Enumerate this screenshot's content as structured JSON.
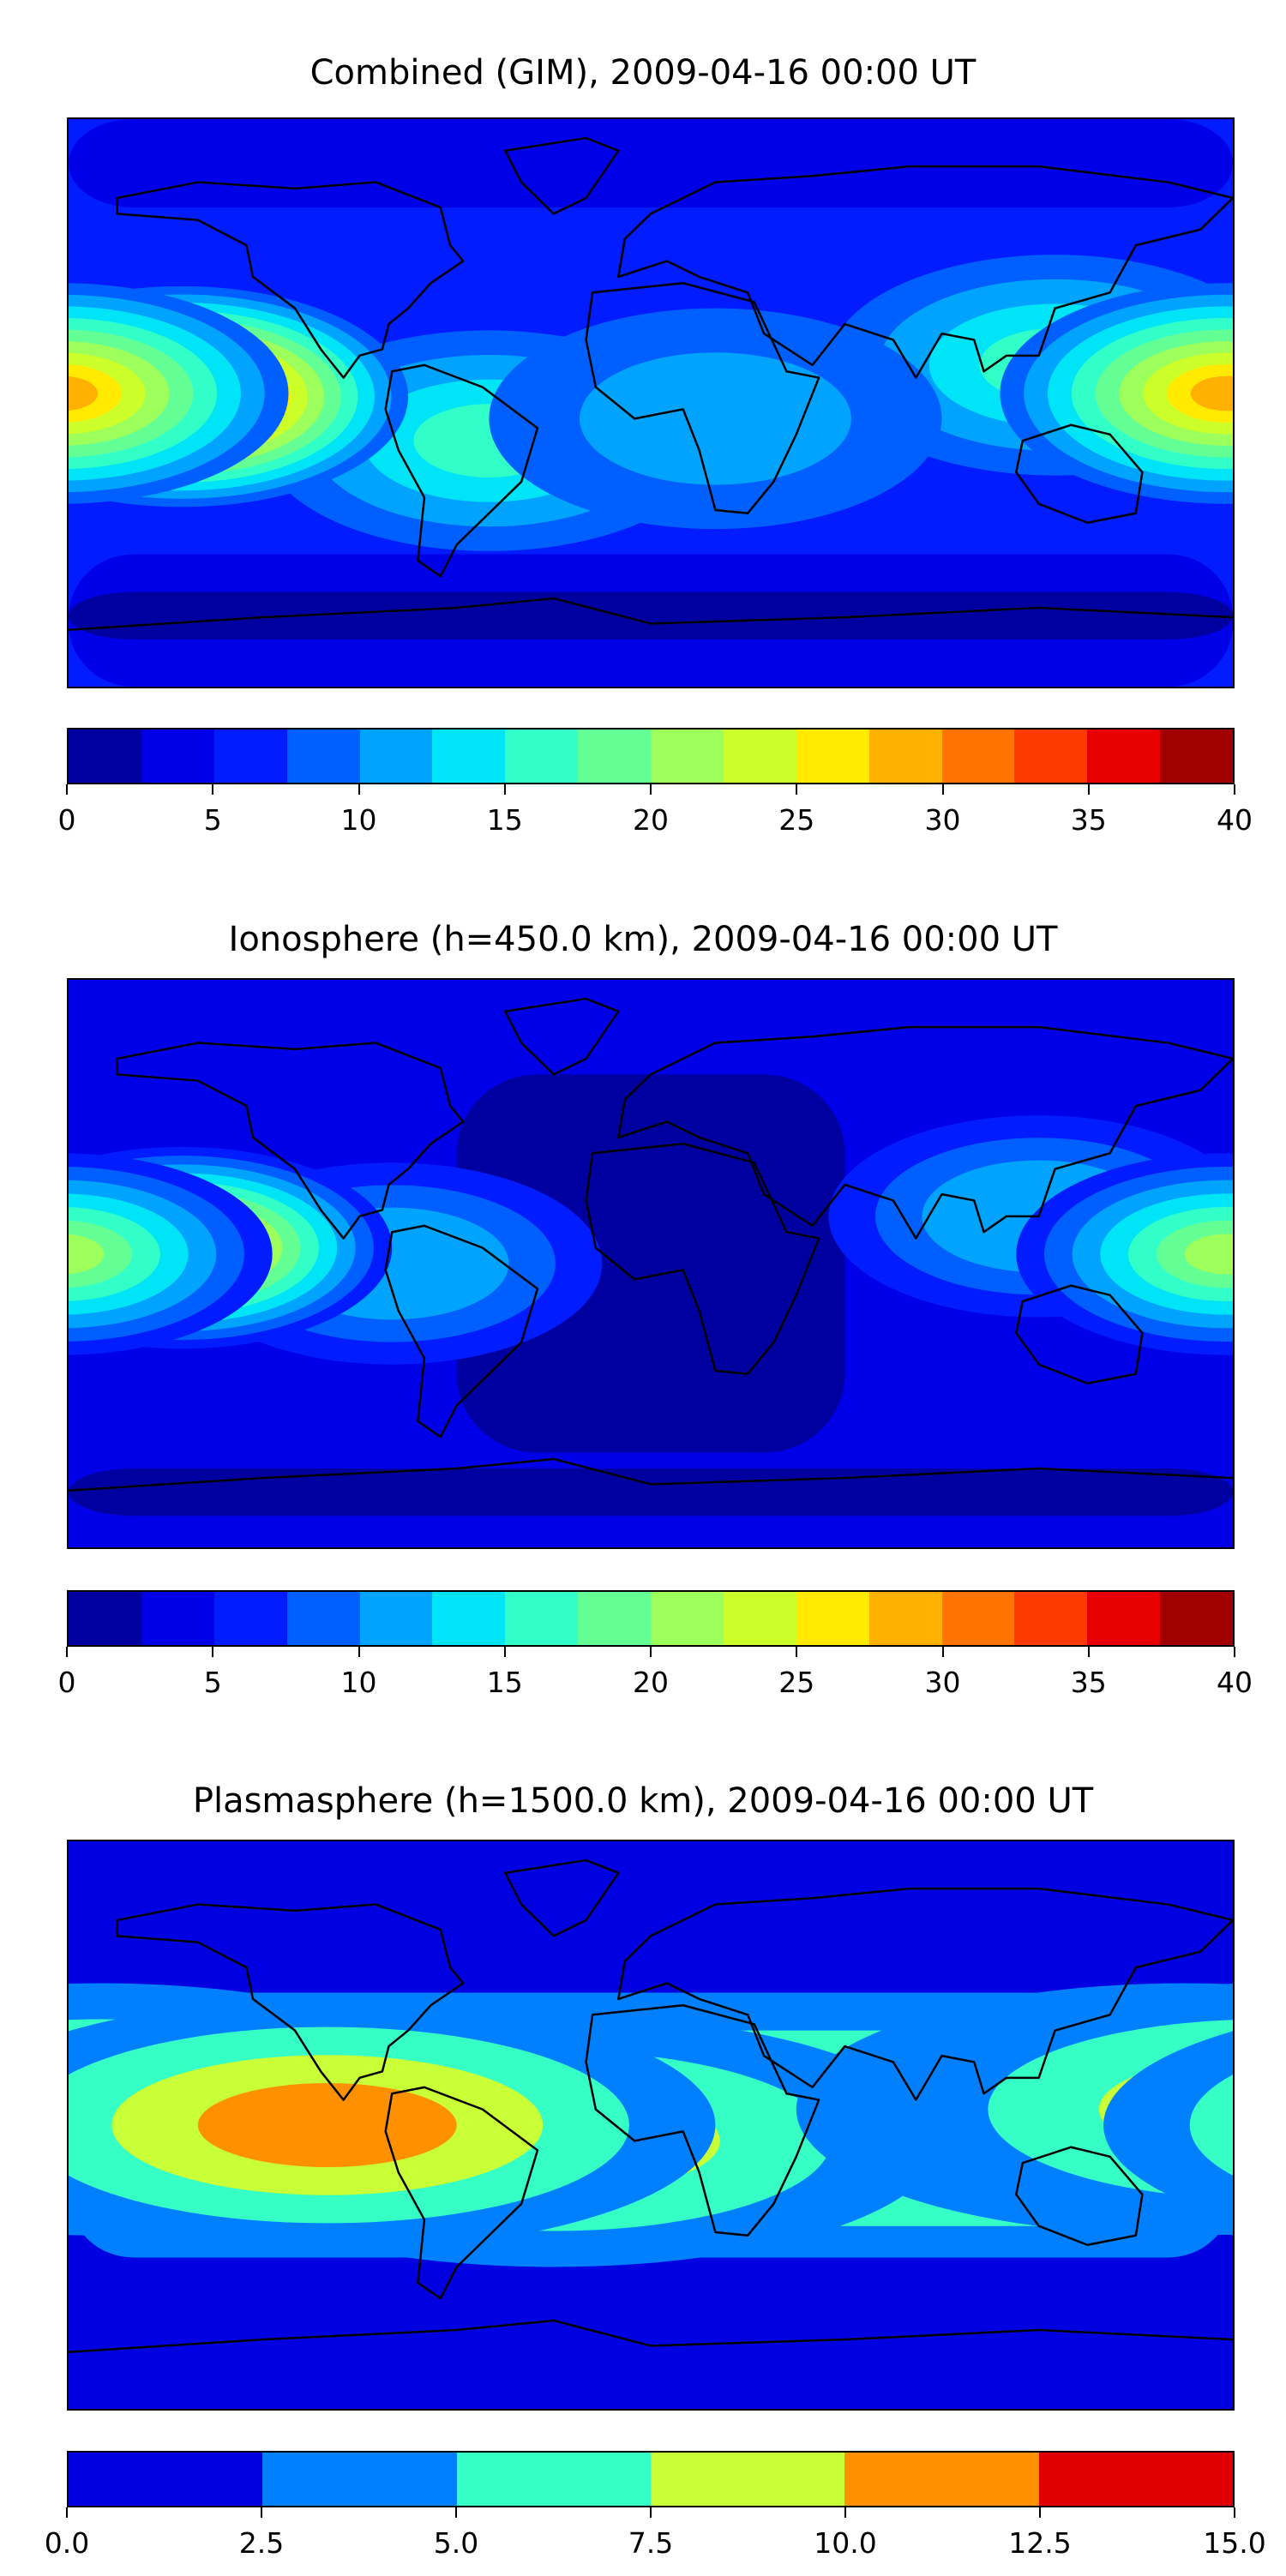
{
  "chart_data": [
    {
      "type": "heatmap",
      "title": "Combined (GIM), 2009-04-16 00:00 UT",
      "colorbar": {
        "min": 0,
        "max": 40,
        "step": 2.5,
        "ticks": [
          "0",
          "5",
          "10",
          "15",
          "20",
          "25",
          "30",
          "35",
          "40"
        ],
        "colors": [
          "#0000A0",
          "#0000E8",
          "#001CFF",
          "#0060FF",
          "#00A4FF",
          "#00E4F8",
          "#32FFC8",
          "#64FF94",
          "#9CFF5C",
          "#CCFF2A",
          "#FFEA00",
          "#FFB000",
          "#FF7400",
          "#FF3A00",
          "#E80000",
          "#A00000"
        ]
      },
      "background_value": 6,
      "bands": [
        {
          "lat_from": 90,
          "lat_to": 62,
          "value": 3
        },
        {
          "lat_from": -48,
          "lat_to": -90,
          "value": 3
        },
        {
          "lat_from": -60,
          "lat_to": -75,
          "value": 1
        }
      ],
      "features": [
        {
          "lon": -50,
          "lat": -12,
          "peak": 16
        },
        {
          "lon": 125,
          "lat": 12,
          "peak": 16
        },
        {
          "lon": 20,
          "lat": -5,
          "peak": 11
        },
        {
          "lon": -145,
          "lat": 2,
          "peak": 37
        },
        {
          "lon": 178,
          "lat": 3,
          "peak": 28
        }
      ]
    },
    {
      "type": "heatmap",
      "title": "Ionosphere  (h=450.0 km), 2009-04-16 00:00 UT",
      "colorbar": {
        "min": 0,
        "max": 40,
        "step": 2.5,
        "ticks": [
          "0",
          "5",
          "10",
          "15",
          "20",
          "25",
          "30",
          "35",
          "40"
        ],
        "colors": [
          "#0000A0",
          "#0000E8",
          "#001CFF",
          "#0060FF",
          "#00A4FF",
          "#00E4F8",
          "#32FFC8",
          "#64FF94",
          "#9CFF5C",
          "#CCFF2A",
          "#FFEA00",
          "#FFB000",
          "#FF7400",
          "#FF3A00",
          "#E80000",
          "#A00000"
        ]
      },
      "background_value": 3.5,
      "bands": [
        {
          "lat_from": 60,
          "lat_to": -60,
          "value": 1,
          "lon_from": -60,
          "lon_to": 60
        },
        {
          "lat_from": -65,
          "lat_to": -80,
          "value": 1
        }
      ],
      "features": [
        {
          "lon": 120,
          "lat": 15,
          "peak": 12
        },
        {
          "lon": -80,
          "lat": 0,
          "peak": 12
        },
        {
          "lon": -145,
          "lat": 5,
          "peak": 30
        },
        {
          "lon": 178,
          "lat": 3,
          "peak": 20
        }
      ]
    },
    {
      "type": "heatmap",
      "title": "Plasmasphere (h=1500.0 km), 2009-04-16 00:00 UT",
      "colorbar": {
        "min": 0,
        "max": 15,
        "step": 2.5,
        "ticks": [
          "0.0",
          "2.5",
          "5.0",
          "7.5",
          "10.0",
          "12.5",
          "15.0"
        ],
        "colors": [
          "#0000E0",
          "#0080FF",
          "#36FFC6",
          "#C8FF36",
          "#FF9000",
          "#E00000"
        ]
      },
      "background_value": 1,
      "bands": [
        {
          "lat_from": 42,
          "lat_to": -42,
          "value": 3.5
        },
        {
          "lat_from": 30,
          "lat_to": -32,
          "value": 6
        }
      ],
      "features": [
        {
          "lon": -30,
          "lat": -5,
          "peak": 8.5
        },
        {
          "lon": 165,
          "lat": 5,
          "peak": 8.5
        },
        {
          "lon": -170,
          "lat": 5,
          "peak": 8.5
        },
        {
          "lon": -100,
          "lat": 0,
          "peak": 11
        }
      ]
    }
  ]
}
